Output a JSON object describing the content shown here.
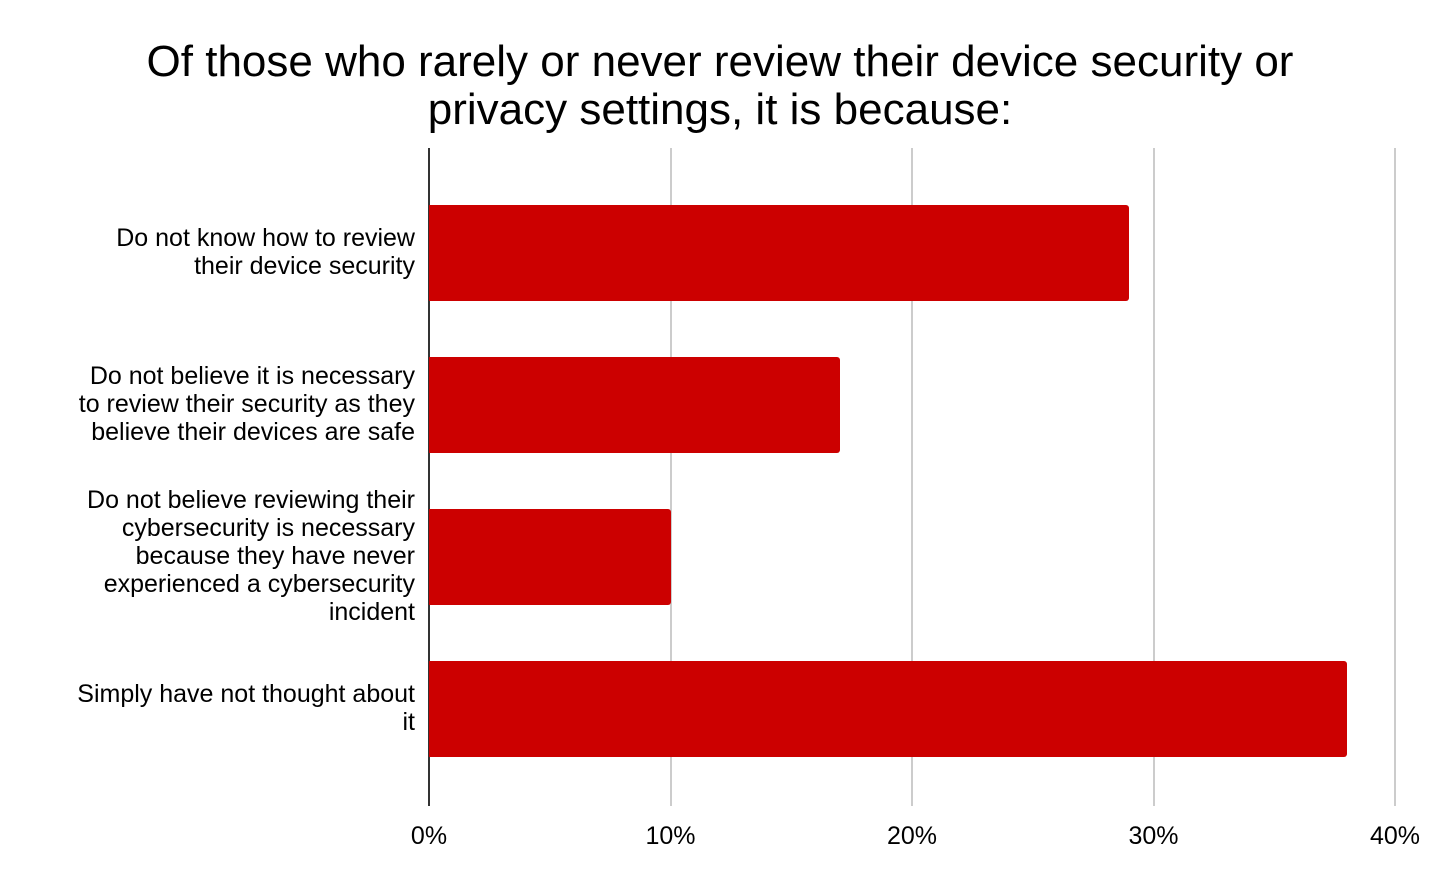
{
  "title_line1": "Of those who rarely or never review their device security or",
  "title_line2": "privacy settings, it is because:",
  "colors": {
    "bar": "#cc0000",
    "grid": "#cccccc",
    "axis": "#333333"
  },
  "chart_data": {
    "type": "bar",
    "orientation": "horizontal",
    "title": "Of those who rarely or never review their device security or privacy settings, it is because:",
    "categories": [
      "Do not know how to review their device security",
      "Do not believe it is necessary to review their security as they believe their devices are safe",
      "Do not believe reviewing their cybersecurity is necessary because they have never experienced a cybersecurity incident",
      "Simply have not thought about it"
    ],
    "values": [
      29,
      17,
      10,
      38
    ],
    "unit": "%",
    "xlabel": "",
    "ylabel": "",
    "xlim": [
      0,
      40
    ],
    "x_ticks": [
      "0%",
      "10%",
      "20%",
      "30%",
      "40%"
    ],
    "grid": true,
    "legend": null
  },
  "category_lines": [
    [
      "Do not know how to review",
      "their device security"
    ],
    [
      "Do not believe it is necessary",
      "to review their security as they",
      "believe their devices are safe"
    ],
    [
      "Do not believe reviewing their",
      "cybersecurity is necessary",
      "because they have never",
      "experienced a cybersecurity",
      "incident"
    ],
    [
      "Simply have not thought about",
      "it"
    ]
  ]
}
